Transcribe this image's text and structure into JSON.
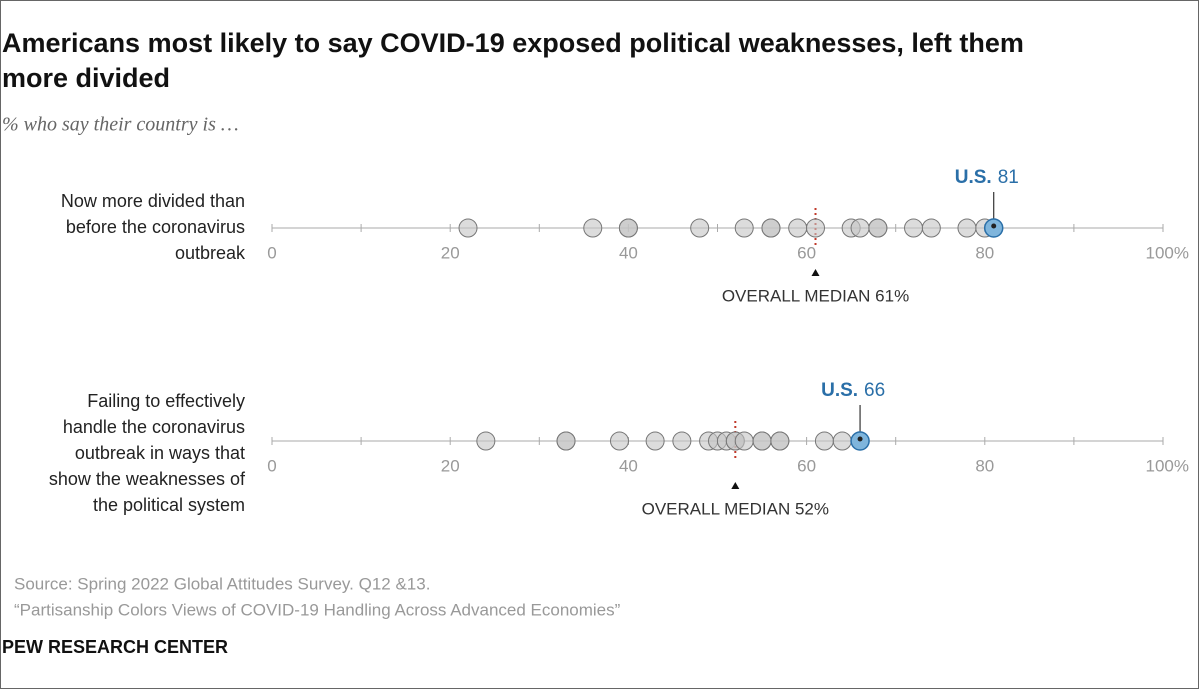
{
  "header": {
    "title_lines": [
      "Americans most likely to say COVID-19 exposed political weaknesses, left them",
      "more divided"
    ],
    "subtitle": "% who say their country is …"
  },
  "chart_data": [
    {
      "type": "dot",
      "label_lines": [
        "Now more divided than",
        "before the coronavirus",
        "outbreak"
      ],
      "values": [
        22,
        36,
        40,
        40,
        48,
        53,
        56,
        56,
        59,
        61,
        65,
        66,
        68,
        68,
        72,
        74,
        78,
        80
      ],
      "color": "#c4c4c4",
      "highlight": {
        "label": "U.S.",
        "value": 81,
        "color": "#7fb5dc"
      },
      "median": {
        "label": "OVERALL MEDIAN 61%",
        "value": 61,
        "color": "#c0392b"
      },
      "xlim": [
        0,
        100
      ],
      "xticks": [
        0,
        20,
        40,
        60,
        80,
        {
          "value": 100,
          "label": "100%"
        }
      ],
      "minor_xticks": [
        10,
        30,
        50,
        70,
        90
      ]
    },
    {
      "type": "dot",
      "label_lines": [
        "Failing to effectively",
        "handle the coronavirus",
        "outbreak in ways that",
        "show the weaknesses of",
        "the political system"
      ],
      "values": [
        24,
        33,
        33,
        39,
        43,
        46,
        49,
        50,
        51,
        52,
        52,
        53,
        55,
        55,
        57,
        57,
        62,
        64
      ],
      "color": "#c4c4c4",
      "highlight": {
        "label": "U.S.",
        "value": 66,
        "color": "#7fb5dc"
      },
      "median": {
        "label": "OVERALL MEDIAN 52%",
        "value": 52,
        "color": "#c0392b"
      },
      "xlim": [
        0,
        100
      ],
      "xticks": [
        0,
        20,
        40,
        60,
        80,
        {
          "value": 100,
          "label": "100%"
        }
      ],
      "minor_xticks": [
        10,
        30,
        50,
        70,
        90
      ]
    }
  ],
  "footer": {
    "source": "Source: Spring 2022 Global Attitudes Survey. Q12 &13.",
    "note": "“Partisanship Colors Views of COVID-19 Handling Across Advanced Economies”",
    "brand": "PEW RESEARCH CENTER"
  }
}
